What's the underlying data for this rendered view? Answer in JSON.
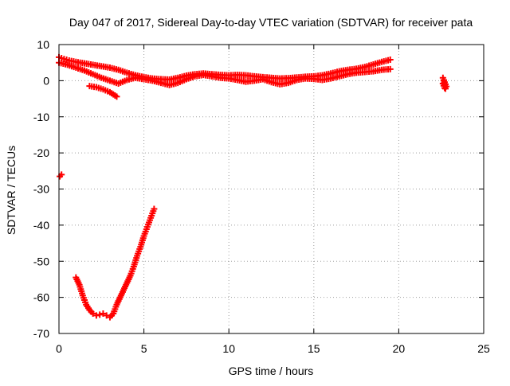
{
  "chart_data": {
    "type": "scatter",
    "title": "Day 047 of 2017, Sidereal Day-to-day VTEC variation (SDTVAR) for receiver pata",
    "xlabel": "GPS time / hours",
    "ylabel": "SDTVAR / TECUs",
    "xlim": [
      0,
      25
    ],
    "ylim": [
      -70,
      10
    ],
    "xticks": [
      0,
      5,
      10,
      15,
      20,
      25
    ],
    "yticks": [
      10,
      0,
      -10,
      -20,
      -30,
      -40,
      -50,
      -60,
      -70
    ],
    "xtick_labels": [
      "0",
      "5",
      "10",
      "15",
      "20",
      "25"
    ],
    "ytick_labels": [
      "10",
      "0",
      "-10",
      "-20",
      "-30",
      "-40",
      "-50",
      "-60",
      "-70"
    ],
    "grid": true,
    "legend": "none",
    "marker": "plus",
    "series": [
      {
        "name": "main-track-upper",
        "color": "#ff0000",
        "x": [
          0.0,
          0.3,
          0.6,
          1.0,
          1.5,
          2.0,
          2.5,
          3.0,
          3.5,
          4.0,
          4.5,
          5.0,
          5.5,
          6.0,
          6.5,
          7.0,
          7.5,
          8.0,
          8.5,
          9.0,
          9.5,
          10.0,
          10.5,
          11.0,
          11.5,
          12.0,
          12.5,
          13.0,
          13.5,
          14.0,
          14.5,
          15.0,
          15.5,
          16.0,
          16.5,
          17.0,
          17.5,
          18.0,
          18.5,
          19.0,
          19.5
        ],
        "y": [
          6.5,
          6.0,
          5.6,
          5.2,
          4.8,
          4.4,
          4.0,
          3.6,
          3.0,
          2.2,
          1.5,
          1.0,
          0.6,
          0.4,
          0.3,
          0.8,
          1.4,
          1.8,
          2.0,
          1.8,
          1.6,
          1.5,
          1.6,
          1.5,
          1.2,
          1.0,
          0.8,
          0.6,
          0.7,
          0.9,
          1.1,
          1.2,
          1.5,
          2.0,
          2.6,
          3.0,
          3.3,
          3.8,
          4.5,
          5.2,
          5.8
        ]
      },
      {
        "name": "main-track-lower",
        "color": "#ff0000",
        "x": [
          0.0,
          0.5,
          1.0,
          1.5,
          2.0,
          2.5,
          3.0,
          3.5,
          4.0,
          4.5,
          5.0,
          5.5,
          6.0,
          6.5,
          7.0,
          7.5,
          8.0,
          8.5,
          9.0,
          9.5,
          10.0,
          10.5,
          11.0,
          11.5,
          12.0,
          12.5,
          13.0,
          13.5,
          14.0,
          14.5,
          15.0,
          15.5,
          16.0,
          16.5,
          17.0,
          17.5,
          18.0,
          18.5,
          19.0,
          19.5
        ],
        "y": [
          5.0,
          4.4,
          3.6,
          2.8,
          1.8,
          0.8,
          0.0,
          -0.8,
          0.2,
          0.8,
          0.4,
          0.0,
          -0.6,
          -1.2,
          -0.6,
          0.4,
          1.2,
          1.6,
          1.2,
          0.8,
          0.6,
          0.2,
          -0.3,
          0.0,
          0.4,
          -0.4,
          -1.0,
          -0.6,
          0.2,
          0.6,
          0.5,
          0.2,
          0.6,
          1.2,
          1.8,
          2.2,
          2.4,
          2.6,
          3.0,
          3.2
        ]
      },
      {
        "name": "early-branch",
        "color": "#ff0000",
        "x": [
          1.8,
          2.2,
          2.6,
          3.0,
          3.4
        ],
        "y": [
          -1.5,
          -1.8,
          -2.4,
          -3.2,
          -4.4
        ]
      },
      {
        "name": "late-segment",
        "color": "#ff0000",
        "x": [
          22.6,
          22.65,
          22.7,
          22.75,
          22.8,
          22.75,
          22.7,
          22.65,
          22.6,
          22.7
        ],
        "y": [
          0.8,
          0.2,
          -0.4,
          -1.0,
          -1.6,
          -2.2,
          -1.2,
          0.0,
          -0.8,
          -2.0
        ]
      },
      {
        "name": "outlier",
        "color": "#ff0000",
        "x": [
          0.05,
          0.15
        ],
        "y": [
          -26.5,
          -26.0
        ]
      },
      {
        "name": "dip-track",
        "color": "#ff0000",
        "x": [
          1.0,
          1.2,
          1.4,
          1.6,
          1.8,
          2.0,
          2.2,
          2.4,
          2.6,
          2.8,
          3.0,
          3.2,
          3.4,
          3.6,
          3.8,
          4.0,
          4.2,
          4.4,
          4.6,
          4.8,
          5.0,
          5.2,
          5.4,
          5.6
        ],
        "y": [
          -54.5,
          -56.5,
          -59.5,
          -62.0,
          -63.5,
          -64.5,
          -65.0,
          -64.8,
          -64.5,
          -65.0,
          -65.5,
          -64.5,
          -62.0,
          -60.0,
          -58.0,
          -56.0,
          -54.0,
          -51.5,
          -48.5,
          -46.0,
          -43.0,
          -40.5,
          -38.0,
          -35.5
        ]
      }
    ]
  }
}
